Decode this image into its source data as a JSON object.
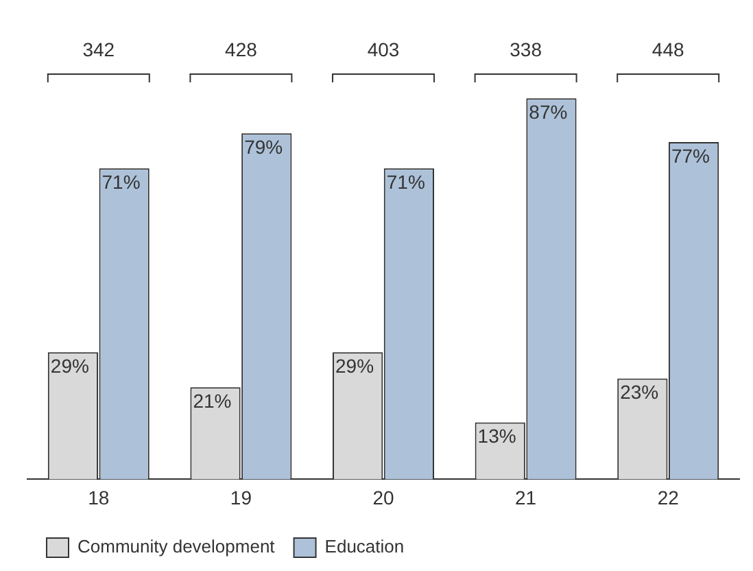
{
  "chart_data": {
    "type": "bar",
    "categories": [
      "18",
      "19",
      "20",
      "21",
      "22"
    ],
    "series": [
      {
        "name": "Community development",
        "color": "#d9d9d9",
        "values": [
          29,
          21,
          29,
          13,
          23
        ],
        "value_labels": [
          "29%",
          "21%",
          "29%",
          "13%",
          "23%"
        ]
      },
      {
        "name": "Education",
        "color": "#adc2d9",
        "values": [
          71,
          79,
          71,
          87,
          77
        ],
        "value_labels": [
          "71%",
          "79%",
          "71%",
          "87%",
          "77%"
        ]
      }
    ],
    "annotations": [
      "342",
      "428",
      "403",
      "338",
      "448"
    ],
    "tick_labels": "x",
    "grid": false,
    "legend": "bottom left"
  }
}
